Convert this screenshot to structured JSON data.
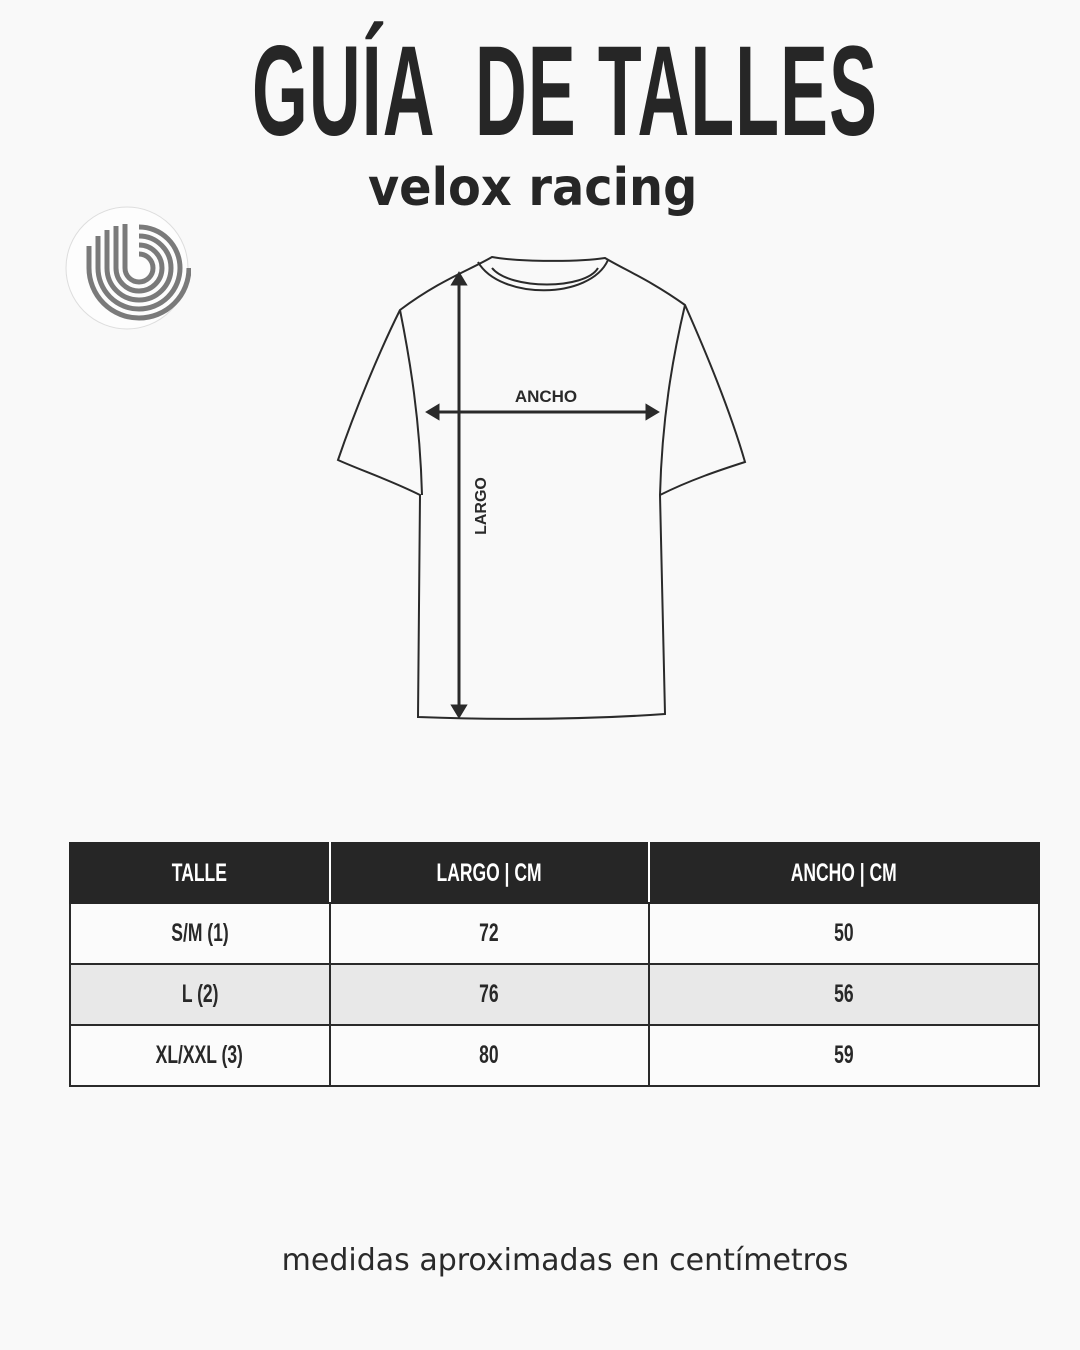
{
  "header": {
    "title": "GUÍA  DE TALLES",
    "subtitle": "velox racing"
  },
  "logo": {
    "icon": "concentric-b-logo",
    "color": "#7a7a7a"
  },
  "diagram": {
    "width_label": "ANCHO",
    "length_label": "LARGO"
  },
  "table": {
    "columns": [
      "TALLE",
      "LARGO | CM",
      "ANCHO | CM"
    ],
    "rows": [
      [
        "S/M (1)",
        "72",
        "50"
      ],
      [
        "L (2)",
        "76",
        "56"
      ],
      [
        "XL/XXL (3)",
        "80",
        "59"
      ]
    ],
    "header_color": "#262626",
    "alt_row_color": "#e8e8e8"
  },
  "footer": {
    "note": "medidas aproximadas en centímetros"
  }
}
